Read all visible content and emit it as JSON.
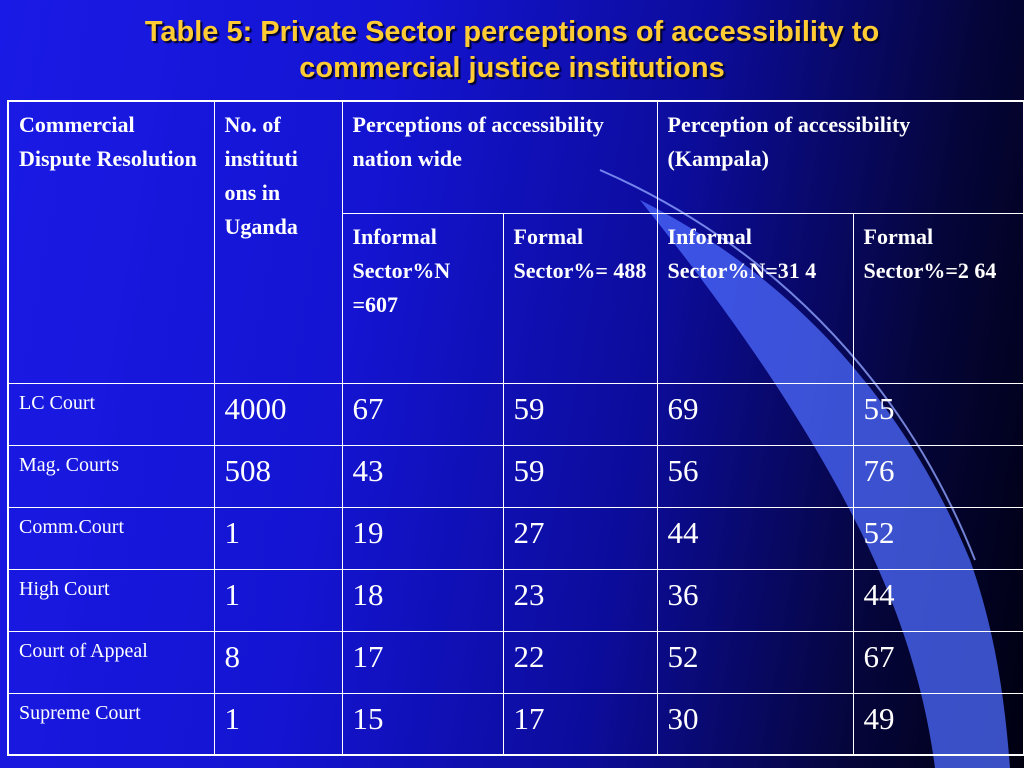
{
  "slide": {
    "title_line1": "Table 5: Private Sector perceptions of accessibility to",
    "title_line2": "commercial justice institutions"
  },
  "table": {
    "headers": {
      "dispute_resolution": "Commercial Dispute Resolution",
      "institutions_count": "No. of instituti ons in Uganda",
      "nationwide": "Perceptions of accessibility nation wide",
      "kampala": "Perception of accessibility (Kampala)",
      "sub": [
        "Informal Sector%N =607",
        "Formal Sector%= 488",
        "Informal Sector%N=31 4",
        "Formal Sector%=2 64"
      ]
    },
    "rows": [
      {
        "label": "LC Court",
        "count": "4000",
        "nat_informal": "67",
        "nat_formal": "59",
        "kla_informal": "69",
        "kla_formal": "55"
      },
      {
        "label": "Mag. Courts",
        "count": "508",
        "nat_informal": "43",
        "nat_formal": "59",
        "kla_informal": "56",
        "kla_formal": "76"
      },
      {
        "label": "Comm.Court",
        "count": "1",
        "nat_informal": "19",
        "nat_formal": "27",
        "kla_informal": "44",
        "kla_formal": "52"
      },
      {
        "label": "High Court",
        "count": "1",
        "nat_informal": "18",
        "nat_formal": "23",
        "kla_informal": "36",
        "kla_formal": "44"
      },
      {
        "label": "Court of Appeal",
        "count": "8",
        "nat_informal": "17",
        "nat_formal": "22",
        "kla_informal": "52",
        "kla_formal": "67"
      },
      {
        "label": "Supreme Court",
        "count": "1",
        "nat_informal": "15",
        "nat_formal": "17",
        "kla_informal": "30",
        "kla_formal": "49"
      }
    ]
  },
  "colors": {
    "background_left": "#1a1ae6",
    "background_right": "#000010",
    "title": "#ffcc33",
    "text": "#ffffff",
    "swoosh": "#4d6bff"
  }
}
